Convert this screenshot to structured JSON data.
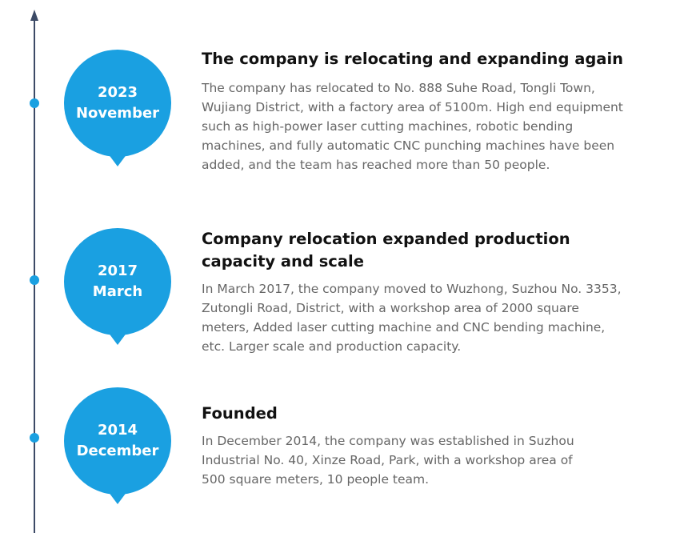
{
  "timeline": {
    "events": [
      {
        "year": "2023",
        "month": "November",
        "title": "The company is relocating and expanding again",
        "description": "The company has relocated to No. 888 Suhe Road, Tongli Town, Wujiang District, with a factory area of 5100m. High end equipment such as high-power laser cutting machines, robotic bending machines, and fully automatic CNC punching machines have been added, and the team has reached more than 50 people."
      },
      {
        "year": "2017",
        "month": "March",
        "title": "Company relocation expanded production capacity and scale",
        "description": "In March 2017, the company moved to Wuzhong, Suzhou No. 3353, Zutongli Road, District, with a workshop area of 2000 square meters, Added laser cutting machine and CNC bending machine, etc. Larger scale and production capacity."
      },
      {
        "year": "2014",
        "month": "December",
        "title": "Founded",
        "description": "In December 2014, the company was established in Suzhou Industrial No. 40, Xinze Road, Park, with a workshop area of 500 square meters, 10 people team."
      }
    ]
  }
}
